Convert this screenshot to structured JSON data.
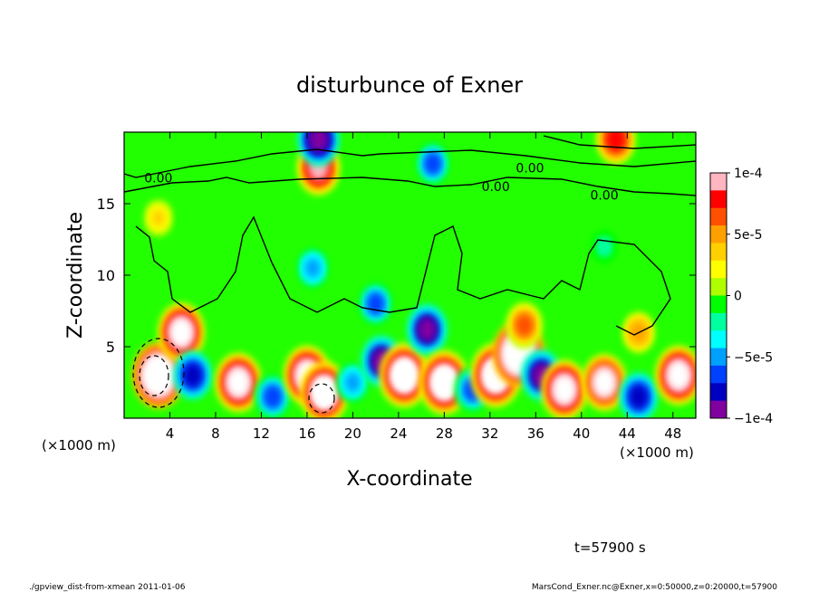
{
  "chart_data": {
    "type": "heatmap",
    "title": "disturbunce of Exner",
    "xlabel": "X-coordinate",
    "ylabel": "Z-coordinate",
    "x_unit_left": "(×1000 m)",
    "x_unit_right": "(×1000 m)",
    "xlim": [
      0,
      50
    ],
    "ylim": [
      0,
      20
    ],
    "x_ticks": [
      4,
      8,
      12,
      16,
      20,
      24,
      28,
      32,
      36,
      40,
      44,
      48
    ],
    "y_ticks": [
      5,
      10,
      15
    ],
    "colorbar": {
      "vmin": -0.0001,
      "vmax": 0.0001,
      "tick_labels": [
        {
          "value": 0.0001,
          "label": "1e-4"
        },
        {
          "value": 5e-05,
          "label": "5e-5"
        },
        {
          "value": 0,
          "label": "0"
        },
        {
          "value": -5e-05,
          "label": "−5e-5"
        },
        {
          "value": -0.0001,
          "label": "−1e-4"
        }
      ],
      "colors": [
        "#ffb6c1",
        "#ff0000",
        "#ff5000",
        "#ffa000",
        "#ffd000",
        "#ffff00",
        "#b0ff00",
        "#00ff00",
        "#00ffa0",
        "#00ffff",
        "#00a0ff",
        "#0040ff",
        "#0000c0",
        "#8000a0"
      ]
    },
    "contour_labels": [
      {
        "x": 3,
        "z": 16.8,
        "label": "0.00"
      },
      {
        "x": 35.5,
        "z": 17.5,
        "label": "0.00"
      },
      {
        "x": 32.5,
        "z": 16.2,
        "label": "0.00"
      },
      {
        "x": 42,
        "z": 15.6,
        "label": "0.00"
      }
    ],
    "features": [
      {
        "x": 17,
        "z": 17.5,
        "value": 0.0001
      },
      {
        "x": 17,
        "z": 19.5,
        "value": -0.0001
      },
      {
        "x": 27,
        "z": 17.8,
        "value": -6e-05
      },
      {
        "x": 43,
        "z": 19.5,
        "value": 8e-05
      },
      {
        "x": 3,
        "z": 3,
        "value": 0.00015
      },
      {
        "x": 5,
        "z": 6,
        "value": 0.00012
      },
      {
        "x": 6,
        "z": 3,
        "value": -8e-05
      },
      {
        "x": 10,
        "z": 2.5,
        "value": 0.00012
      },
      {
        "x": 13,
        "z": 1.5,
        "value": -7e-05
      },
      {
        "x": 16,
        "z": 3,
        "value": 0.00012
      },
      {
        "x": 17.5,
        "z": 1.8,
        "value": 0.00013
      },
      {
        "x": 20,
        "z": 2.5,
        "value": -5e-05
      },
      {
        "x": 22.5,
        "z": 4,
        "value": -9e-05
      },
      {
        "x": 24.5,
        "z": 3,
        "value": 0.00014
      },
      {
        "x": 26.5,
        "z": 6.2,
        "value": -9e-05
      },
      {
        "x": 28,
        "z": 2.5,
        "value": 0.00014
      },
      {
        "x": 30.5,
        "z": 2,
        "value": -7e-05
      },
      {
        "x": 32.5,
        "z": 3,
        "value": 0.00014
      },
      {
        "x": 34.5,
        "z": 4.5,
        "value": 0.00015
      },
      {
        "x": 36.5,
        "z": 3,
        "value": -9e-05
      },
      {
        "x": 38.5,
        "z": 2,
        "value": 0.00012
      },
      {
        "x": 42,
        "z": 2.5,
        "value": 0.00011
      },
      {
        "x": 45,
        "z": 1.5,
        "value": -8e-05
      },
      {
        "x": 48.5,
        "z": 3,
        "value": 0.00012
      },
      {
        "x": 35,
        "z": 6.5,
        "value": 7e-05
      },
      {
        "x": 45,
        "z": 6,
        "value": 5e-05
      },
      {
        "x": 16.5,
        "z": 10.5,
        "value": -5e-05
      },
      {
        "x": 22,
        "z": 8,
        "value": -6e-05
      },
      {
        "x": 3,
        "z": 14,
        "value": 3e-05
      },
      {
        "x": 42,
        "z": 12,
        "value": -2e-05
      }
    ]
  },
  "annotation": {
    "time_label": "t=57900 s"
  },
  "footer": {
    "left": "./gpview_dist-from-xmean  2011-01-06",
    "right": "MarsCond_Exner.nc@Exner,x=0:50000,z=0:20000,t=57900"
  }
}
